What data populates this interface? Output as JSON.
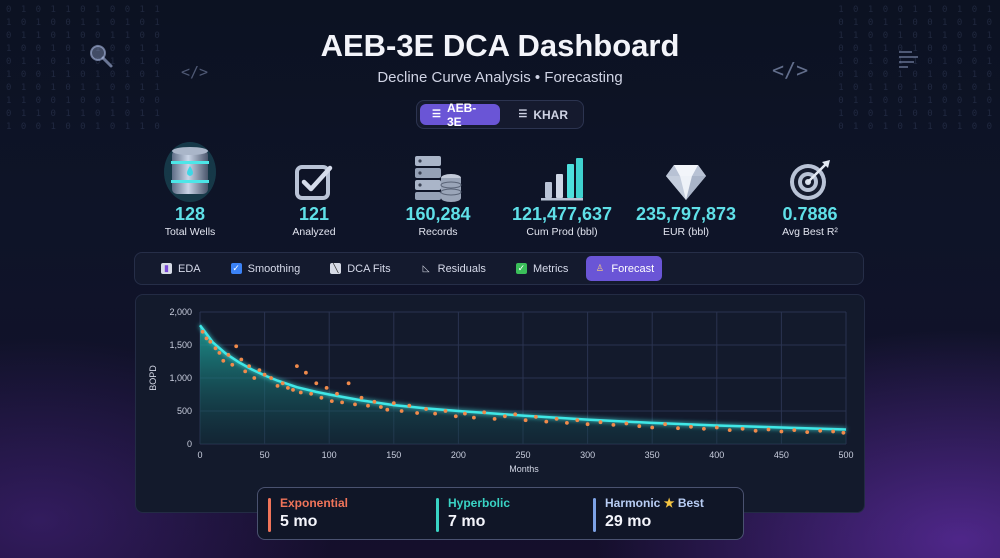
{
  "header": {
    "title": "AEB-3E DCA Dashboard",
    "subtitle": "Decline Curve Analysis • Forecasting"
  },
  "field_switch": [
    {
      "label": "AEB-3E",
      "icon": "database-icon",
      "active": true
    },
    {
      "label": "KHAR",
      "icon": "database-icon",
      "active": false
    }
  ],
  "kpis": [
    {
      "value": "128",
      "label": "Total Wells",
      "icon": "oil-barrel-icon"
    },
    {
      "value": "121",
      "label": "Analyzed",
      "icon": "checkbox-icon"
    },
    {
      "value": "160,284",
      "label": "Records",
      "icon": "server-database-icon"
    },
    {
      "value": "121,477,637",
      "label": "Cum Prod (bbl)",
      "icon": "bar-chart-icon"
    },
    {
      "value": "235,797,873",
      "label": "EUR (bbl)",
      "icon": "diamond-icon"
    },
    {
      "value": "0.7886",
      "label": "Avg Best R²",
      "icon": "target-icon"
    }
  ],
  "tabs": [
    {
      "label": "EDA",
      "icon": "bar-chart-icon",
      "active": false
    },
    {
      "label": "Smoothing",
      "icon": "checkbox-icon",
      "active": false
    },
    {
      "label": "DCA Fits",
      "icon": "chart-fit-icon",
      "active": false
    },
    {
      "label": "Residuals",
      "icon": "residuals-icon",
      "active": false
    },
    {
      "label": "Metrics",
      "icon": "check-icon",
      "active": false
    },
    {
      "label": "Forecast",
      "icon": "forecast-icon",
      "active": true
    }
  ],
  "chart_data": {
    "type": "line",
    "xlabel": "Months",
    "ylabel": "BOPD",
    "xlim": [
      0,
      500
    ],
    "ylim": [
      0,
      2000
    ],
    "xticks": [
      0,
      50,
      100,
      150,
      200,
      250,
      300,
      350,
      400,
      450,
      500
    ],
    "yticks": [
      0,
      500,
      1000,
      1500,
      2000
    ],
    "ytick_labels": [
      "0",
      "500",
      "1,000",
      "1,500",
      "2,000"
    ],
    "grid": true,
    "colors": {
      "fit_line": "#3fe7e6",
      "observed_points": "#f08a4b",
      "fill": "#1fa79e"
    },
    "series": [
      {
        "kind": "fit_curve",
        "x": [
          0,
          10,
          20,
          30,
          40,
          50,
          60,
          75,
          90,
          100,
          125,
          150,
          175,
          200,
          250,
          300,
          350,
          400,
          450,
          500
        ],
        "values": [
          1800,
          1540,
          1370,
          1240,
          1130,
          1040,
          960,
          860,
          790,
          750,
          660,
          590,
          540,
          500,
          430,
          370,
          320,
          280,
          250,
          220
        ]
      },
      {
        "kind": "observed",
        "x": [
          2,
          5,
          8,
          12,
          15,
          18,
          22,
          25,
          28,
          32,
          35,
          38,
          42,
          46,
          50,
          55,
          60,
          64,
          68,
          72,
          75,
          78,
          82,
          86,
          90,
          94,
          98,
          102,
          106,
          110,
          115,
          120,
          125,
          130,
          135,
          140,
          145,
          150,
          156,
          162,
          168,
          175,
          182,
          190,
          198,
          205,
          212,
          220,
          228,
          236,
          244,
          252,
          260,
          268,
          276,
          284,
          292,
          300,
          310,
          320,
          330,
          340,
          350,
          360,
          370,
          380,
          390,
          400,
          410,
          420,
          430,
          440,
          450,
          460,
          470,
          480,
          490,
          498
        ],
        "values": [
          1700,
          1600,
          1550,
          1450,
          1380,
          1260,
          1350,
          1200,
          1480,
          1280,
          1100,
          1180,
          1000,
          1120,
          1050,
          1000,
          880,
          920,
          850,
          820,
          1180,
          780,
          1080,
          760,
          920,
          700,
          850,
          650,
          760,
          630,
          920,
          600,
          700,
          580,
          640,
          560,
          520,
          620,
          500,
          580,
          470,
          530,
          460,
          500,
          420,
          460,
          400,
          480,
          380,
          420,
          450,
          360,
          410,
          340,
          380,
          320,
          360,
          300,
          330,
          290,
          310,
          270,
          250,
          300,
          240,
          260,
          230,
          250,
          210,
          230,
          200,
          220,
          190,
          210,
          180,
          200,
          190,
          170
        ]
      }
    ]
  },
  "methods": [
    {
      "name": "Exponential",
      "value": "5 mo",
      "color": "#f0745a",
      "best": false
    },
    {
      "name": "Hyperbolic",
      "value": "7 mo",
      "color": "#39d3c4",
      "best": false
    },
    {
      "name": "Harmonic",
      "value": "29 mo",
      "color": "#7da2e6",
      "best": true,
      "best_label": "Best"
    }
  ]
}
